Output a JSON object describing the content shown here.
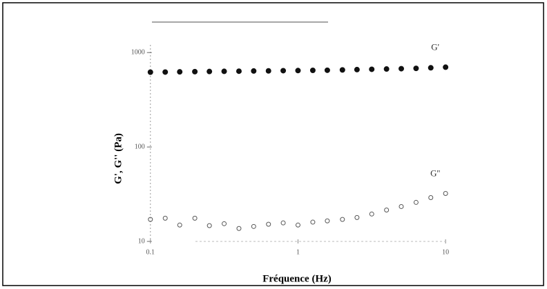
{
  "chart_data": {
    "type": "scatter",
    "x_label": "Fréquence (Hz)",
    "y_label": "G', G'' (Pa)",
    "x": [
      0.1,
      0.126,
      0.158,
      0.2,
      0.251,
      0.316,
      0.398,
      0.501,
      0.631,
      0.794,
      1,
      1.26,
      1.58,
      2,
      2.51,
      3.16,
      3.98,
      5.01,
      6.31,
      7.94,
      10
    ],
    "series": [
      {
        "name": "G'",
        "color": "#111111",
        "marker": "filled",
        "values": [
          620,
          622,
          625,
          628,
          630,
          633,
          635,
          638,
          640,
          643,
          645,
          648,
          650,
          655,
          660,
          665,
          670,
          675,
          680,
          690,
          700
        ]
      },
      {
        "name": "G''",
        "color": "#555555",
        "marker": "open",
        "values": [
          17.1,
          17.6,
          14.9,
          17.6,
          14.7,
          15.4,
          13.7,
          14.4,
          15.2,
          15.7,
          14.9,
          16.0,
          16.5,
          17.1,
          17.9,
          19.5,
          21.5,
          23.4,
          25.9,
          29.1,
          32.2
        ]
      }
    ],
    "xlog": true,
    "ylog": true,
    "xlim": [
      0.09,
      11
    ],
    "ylim": [
      10,
      2000
    ],
    "xticks": [
      0.1,
      1,
      10
    ],
    "yticks": [
      10,
      100,
      1000
    ]
  }
}
